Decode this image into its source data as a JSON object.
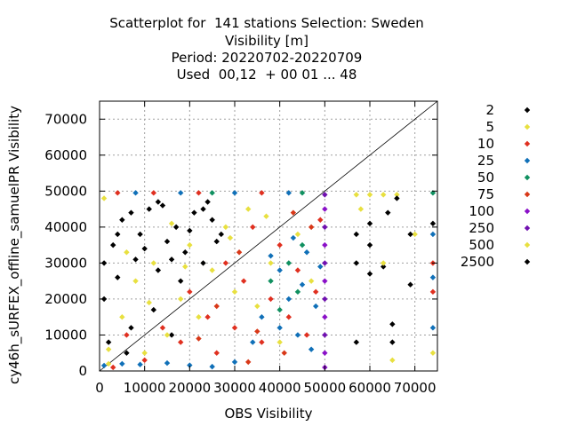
{
  "title_lines": [
    "Scatterplot for  141 stations Selection: Sweden",
    "Visibility [m]",
    "Period: 20220702-20220709",
    "Used  00,12  + 00 01 ... 48"
  ],
  "chart_data": {
    "type": "scatter",
    "xlabel": "OBS Visibility",
    "ylabel": "cy46h_sURFEX_offline_samuelPR Visibility",
    "xlim": [
      0,
      75000
    ],
    "ylim": [
      0,
      75000
    ],
    "x_ticks": [
      0,
      10000,
      20000,
      30000,
      40000,
      50000,
      60000,
      70000
    ],
    "x_tick_labels": [
      "0",
      "10000",
      "20000",
      "30000",
      "40000",
      "50000",
      "60000",
      "70000"
    ],
    "y_ticks": [
      0,
      10000,
      20000,
      30000,
      40000,
      50000,
      60000,
      70000
    ],
    "y_tick_labels": [
      "0",
      "10000",
      "20000",
      "30000",
      "40000",
      "50000",
      "60000",
      "70000"
    ],
    "grid": true,
    "diagonal": true,
    "legend_position": "right",
    "series": [
      {
        "name": "2",
        "color": "#000000",
        "points": [
          [
            1000,
            20000
          ],
          [
            3000,
            35000
          ],
          [
            5000,
            42000
          ],
          [
            7000,
            12000
          ],
          [
            9000,
            38000
          ],
          [
            11000,
            45000
          ],
          [
            13000,
            28000
          ],
          [
            15000,
            36000
          ],
          [
            17000,
            40000
          ],
          [
            19000,
            33000
          ],
          [
            21000,
            44000
          ],
          [
            23000,
            30000
          ],
          [
            25000,
            42000
          ],
          [
            27000,
            38000
          ],
          [
            2000,
            8000
          ],
          [
            4000,
            26000
          ],
          [
            8000,
            31000
          ],
          [
            14000,
            46000
          ],
          [
            18000,
            25000
          ],
          [
            24000,
            47000
          ],
          [
            57000,
            38000
          ],
          [
            57000,
            30000
          ],
          [
            60000,
            41000
          ],
          [
            60000,
            27000
          ],
          [
            63000,
            29000
          ],
          [
            64000,
            44000
          ],
          [
            65000,
            13000
          ],
          [
            65000,
            8000
          ],
          [
            69000,
            24000
          ],
          [
            74000,
            41000
          ],
          [
            57000,
            8000
          ],
          [
            12000,
            17000
          ],
          [
            6000,
            5000
          ],
          [
            16000,
            10000
          ]
        ]
      },
      {
        "name": "5",
        "color": "#e8e040",
        "points": [
          [
            2000,
            2000
          ],
          [
            5000,
            15000
          ],
          [
            8000,
            25000
          ],
          [
            10000,
            5000
          ],
          [
            12000,
            30000
          ],
          [
            15000,
            10000
          ],
          [
            18000,
            20000
          ],
          [
            20000,
            35000
          ],
          [
            22000,
            15000
          ],
          [
            25000,
            28000
          ],
          [
            28000,
            40000
          ],
          [
            30000,
            22000
          ],
          [
            33000,
            45000
          ],
          [
            35000,
            18000
          ],
          [
            38000,
            30000
          ],
          [
            40000,
            8000
          ],
          [
            44000,
            38000
          ],
          [
            47000,
            25000
          ],
          [
            57000,
            49000
          ],
          [
            60000,
            49000
          ],
          [
            63000,
            49000
          ],
          [
            66000,
            49000
          ],
          [
            58000,
            45000
          ],
          [
            63000,
            30000
          ],
          [
            70000,
            38000
          ],
          [
            74000,
            5000
          ],
          [
            65000,
            3000
          ],
          [
            1000,
            48000
          ]
        ]
      },
      {
        "name": "10",
        "color": "#e03020",
        "points": [
          [
            3000,
            1000
          ],
          [
            6000,
            10000
          ],
          [
            10000,
            3000
          ],
          [
            14000,
            12000
          ],
          [
            18000,
            8000
          ],
          [
            20000,
            22000
          ],
          [
            24000,
            15000
          ],
          [
            26000,
            5000
          ],
          [
            28000,
            30000
          ],
          [
            30000,
            12000
          ],
          [
            32000,
            25000
          ],
          [
            34000,
            40000
          ],
          [
            36000,
            8000
          ],
          [
            38000,
            20000
          ],
          [
            40000,
            35000
          ],
          [
            42000,
            15000
          ],
          [
            44000,
            28000
          ],
          [
            46000,
            10000
          ],
          [
            48000,
            22000
          ],
          [
            49000,
            42000
          ],
          [
            4000,
            49500
          ],
          [
            12000,
            49500
          ],
          [
            22000,
            49500
          ],
          [
            36000,
            49500
          ],
          [
            74000,
            30000
          ],
          [
            74000,
            22000
          ]
        ]
      },
      {
        "name": "25",
        "color": "#1070b8",
        "points": [
          [
            1000,
            1500
          ],
          [
            5000,
            2000
          ],
          [
            9000,
            1800
          ],
          [
            15000,
            2200
          ],
          [
            20000,
            1600
          ],
          [
            25000,
            1200
          ],
          [
            30000,
            2500
          ],
          [
            34000,
            8000
          ],
          [
            36000,
            15000
          ],
          [
            38000,
            32000
          ],
          [
            40000,
            12000
          ],
          [
            40000,
            28000
          ],
          [
            42000,
            20000
          ],
          [
            43000,
            37000
          ],
          [
            44000,
            10000
          ],
          [
            45000,
            24000
          ],
          [
            46000,
            33000
          ],
          [
            47000,
            6000
          ],
          [
            48000,
            18000
          ],
          [
            49000,
            29000
          ],
          [
            8000,
            49500
          ],
          [
            18000,
            49500
          ],
          [
            30000,
            49500
          ],
          [
            42000,
            49500
          ],
          [
            74000,
            38000
          ],
          [
            74000,
            12000
          ],
          [
            74000,
            26000
          ]
        ]
      },
      {
        "name": "50",
        "color": "#109060",
        "points": [
          [
            42000,
            30000
          ],
          [
            44000,
            22000
          ],
          [
            45000,
            35000
          ],
          [
            40000,
            17000
          ],
          [
            38000,
            25000
          ],
          [
            74000,
            49500
          ],
          [
            45000,
            49500
          ],
          [
            25000,
            49500
          ]
        ]
      },
      {
        "name": "75",
        "color": "#d83818",
        "points": [
          [
            22000,
            9000
          ],
          [
            26000,
            18000
          ],
          [
            31000,
            33000
          ],
          [
            35000,
            11000
          ],
          [
            41000,
            5000
          ],
          [
            43000,
            44000
          ],
          [
            47000,
            40000
          ],
          [
            33000,
            2500
          ]
        ]
      },
      {
        "name": "100",
        "color": "#8a10c8",
        "points": [
          [
            50000,
            5000
          ],
          [
            50000,
            15000
          ],
          [
            50000,
            25000
          ],
          [
            50000,
            35000
          ],
          [
            50000,
            45000
          ],
          [
            50000,
            1000
          ]
        ]
      },
      {
        "name": "250",
        "color": "#7010b0",
        "points": [
          [
            50000,
            10000
          ],
          [
            50000,
            20000
          ],
          [
            50000,
            30000
          ],
          [
            50000,
            40000
          ],
          [
            50000,
            49000
          ]
        ]
      },
      {
        "name": "500",
        "color": "#e8e040",
        "points": [
          [
            2000,
            6000
          ],
          [
            11000,
            19000
          ],
          [
            19000,
            29000
          ],
          [
            29000,
            37000
          ],
          [
            37000,
            43000
          ],
          [
            6000,
            33000
          ],
          [
            16000,
            41000
          ]
        ]
      },
      {
        "name": "2500",
        "color": "#000000",
        "points": [
          [
            1000,
            30000
          ],
          [
            4000,
            38000
          ],
          [
            7000,
            44000
          ],
          [
            10000,
            34000
          ],
          [
            13000,
            47000
          ],
          [
            16000,
            31000
          ],
          [
            20000,
            39000
          ],
          [
            23000,
            45000
          ],
          [
            26000,
            36000
          ],
          [
            60000,
            35000
          ],
          [
            66000,
            48000
          ],
          [
            69000,
            38000
          ]
        ]
      }
    ]
  }
}
